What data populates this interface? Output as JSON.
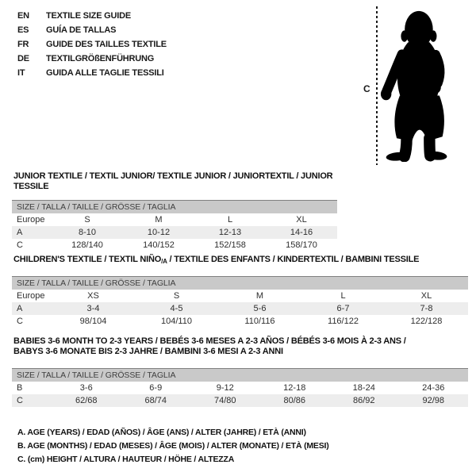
{
  "languages": [
    {
      "code": "EN",
      "label": "TEXTILE SIZE GUIDE"
    },
    {
      "code": "ES",
      "label": "GUÍA DE TALLAS"
    },
    {
      "code": "FR",
      "label": "GUIDE DES TAILLES TEXTILE"
    },
    {
      "code": "DE",
      "label": "TEXTILGRÖßENFÜHRUNG"
    },
    {
      "code": "IT",
      "label": "GUIDA ALLE TAGLIE TESSILI"
    }
  ],
  "figure": {
    "measure_label": "C",
    "image": "toddler-silhouette"
  },
  "tables": [
    {
      "title": "JUNIOR TEXTILE / TEXTIL JUNIOR/ TEXTILE JUNIOR / JUNIORTEXTIL / JUNIOR TESSILE",
      "size_header": "SIZE / TALLA / TAILLE / GRÖSSE / TAGLIA",
      "rows": [
        {
          "label": "Europe",
          "values": [
            "S",
            "M",
            "L",
            "XL"
          ]
        },
        {
          "label": "A",
          "values": [
            "8-10",
            "10-12",
            "12-13",
            "14-16"
          ]
        },
        {
          "label": "C",
          "values": [
            "128/140",
            "140/152",
            "152/158",
            "158/170"
          ]
        }
      ]
    },
    {
      "title_prefix": "CHILDREN'S TEXTILE / TEXTIL NIÑO",
      "title_sub": "/A",
      "title_suffix": " / TEXTILE DES ENFANTS / KINDERTEXTIL / BAMBINI TESSILE",
      "size_header": "SIZE / TALLA / TAILLE / GRÖSSE / TAGLIA",
      "rows": [
        {
          "label": "Europe",
          "values": [
            "XS",
            "S",
            "M",
            "L",
            "XL"
          ]
        },
        {
          "label": "A",
          "values": [
            "3-4",
            "4-5",
            "5-6",
            "6-7",
            "7-8"
          ]
        },
        {
          "label": "C",
          "values": [
            "98/104",
            "104/110",
            "110/116",
            "116/122",
            "122/128"
          ]
        }
      ]
    },
    {
      "title_line1": "BABIES 3-6 MONTH TO 2-3 YEARS / BEBÉS 3-6 MESES A 2-3 AÑOS / BÉBÉS 3-6 MOIS À 2-3 ANS /",
      "title_line2": "BABYS 3-6 MONATE BIS 2-3 JAHRE / BAMBINI 3-6 MESI A 2-3 ANNI",
      "size_header": "SIZE / TALLA / TAILLE / GRÖSSE / TAGLIA",
      "rows": [
        {
          "label": "B",
          "values": [
            "3-6",
            "6-9",
            "9-12",
            "12-18",
            "18-24",
            "24-36"
          ]
        },
        {
          "label": "C",
          "values": [
            "62/68",
            "68/74",
            "74/80",
            "80/86",
            "86/92",
            "92/98"
          ]
        }
      ]
    }
  ],
  "notes": [
    "A. AGE (YEARS) / EDAD (AÑOS) / ÂGE (ANS) / ALTER (JAHRE) / ETÀ (ANNI)",
    "B. AGE (MONTHS) / EDAD (MESES) / ÂGE (MOIS) / ALTER (MONATE) / ETÀ (MESI)",
    "C. (cm) HEIGHT / ALTURA / HAUTEUR / HÖHE / ALTEZZA"
  ],
  "colors": {
    "header_band_bg": "#c9c9c9",
    "header_band_text": "#3f3f3f",
    "alt_row_bg": "#ededed",
    "band_top_border": "#808080",
    "text": "#1a1a1a",
    "silhouette": "#000000"
  }
}
